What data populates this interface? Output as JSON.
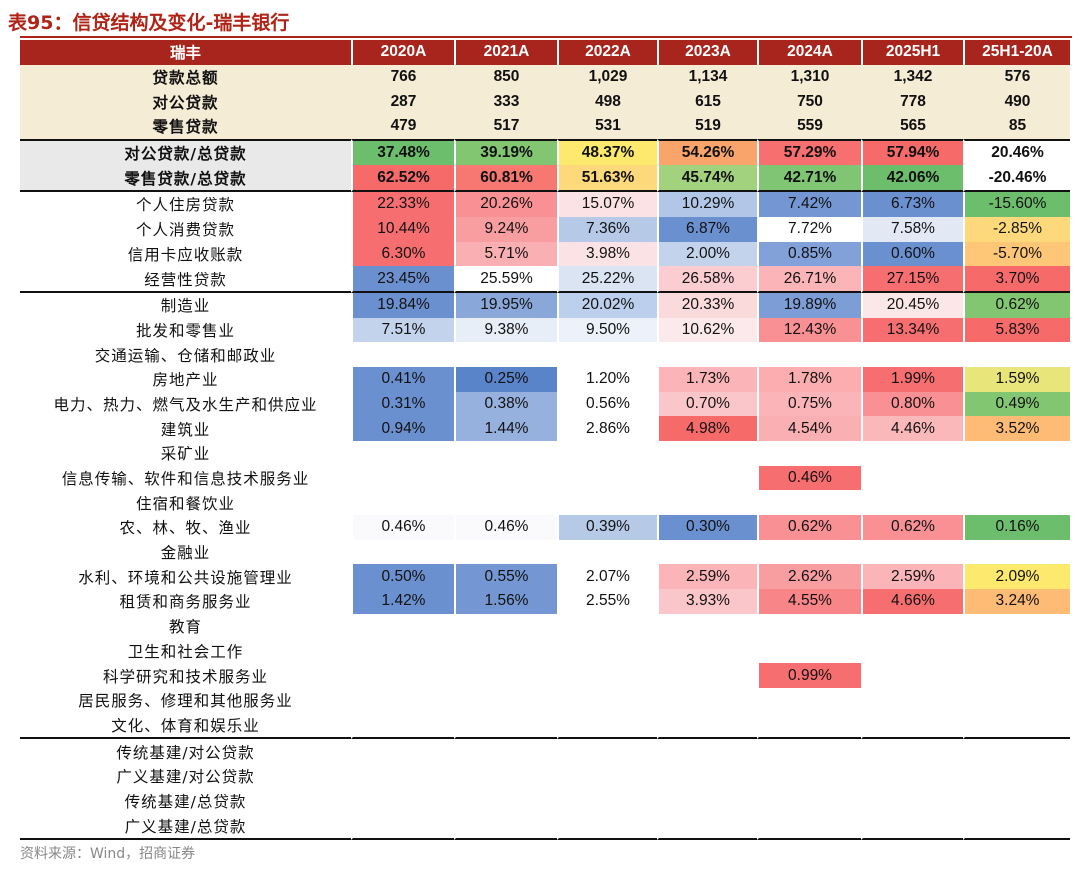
{
  "title": "表95：信贷结构及变化-瑞丰银行",
  "source": "资料来源：Wind，招商证券",
  "header": [
    "瑞丰",
    "2020A",
    "2021A",
    "2022A",
    "2023A",
    "2024A",
    "2025H1",
    "25H1-20A"
  ],
  "colors": {
    "header_bg": "#a8251d",
    "beige": "#f5ecd5",
    "grey_label": "#e9e9e9",
    "title_red": "#b02418"
  },
  "rows": [
    {
      "label": "贷款总额",
      "style": "beige",
      "values": [
        "766",
        "850",
        "1,029",
        "1,134",
        "1,310",
        "1,342",
        "576"
      ],
      "colors": [
        "",
        "",
        "",
        "",
        "",
        "",
        ""
      ]
    },
    {
      "label": "对公贷款",
      "style": "beige",
      "values": [
        "287",
        "333",
        "498",
        "615",
        "750",
        "778",
        "490"
      ],
      "colors": [
        "",
        "",
        "",
        "",
        "",
        "",
        ""
      ]
    },
    {
      "label": "零售贷款",
      "style": "beige",
      "values": [
        "479",
        "517",
        "531",
        "519",
        "559",
        "565",
        "85"
      ],
      "colors": [
        "",
        "",
        "",
        "",
        "",
        "",
        ""
      ]
    },
    {
      "label": "对公贷款/总贷款",
      "style": "grey",
      "topline": true,
      "values": [
        "37.48%",
        "39.19%",
        "48.37%",
        "54.26%",
        "57.29%",
        "57.94%",
        "20.46%"
      ],
      "colors": [
        "#6cbd6c",
        "#82c672",
        "#fde96e",
        "#f9a46b",
        "#f76f6f",
        "#f76a6a",
        ""
      ]
    },
    {
      "label": "零售贷款/总贷款",
      "style": "grey",
      "bottomline": true,
      "values": [
        "62.52%",
        "60.81%",
        "51.63%",
        "45.74%",
        "42.71%",
        "42.06%",
        "-20.46%"
      ],
      "colors": [
        "#f76a6a",
        "#f77870",
        "#fdd97c",
        "#a3d27e",
        "#7fc574",
        "#6cbd6c",
        ""
      ]
    },
    {
      "label": "个人住房贷款",
      "values": [
        "22.33%",
        "20.26%",
        "15.07%",
        "10.29%",
        "7.42%",
        "6.73%",
        "-15.60%"
      ],
      "colors": [
        "#f76e70",
        "#f99194",
        "#fbe2e4",
        "#b2c7e8",
        "#7497d3",
        "#6b90d0",
        "#6cbd6c"
      ]
    },
    {
      "label": "个人消费贷款",
      "values": [
        "10.44%",
        "9.24%",
        "7.36%",
        "6.87%",
        "7.72%",
        "7.58%",
        "-2.85%"
      ],
      "colors": [
        "#f76e70",
        "#f99ea0",
        "#b6cae8",
        "#6b90d0",
        "#ffffff",
        "#e2e9f5",
        "#fdd97c"
      ]
    },
    {
      "label": "信用卡应收账款",
      "values": [
        "6.30%",
        "5.71%",
        "3.98%",
        "2.00%",
        "0.85%",
        "0.60%",
        "-5.70%"
      ],
      "colors": [
        "#f76e70",
        "#fab0b2",
        "#fbe2e4",
        "#c3d3ec",
        "#82a1d8",
        "#6b90d0",
        "#fdc777"
      ]
    },
    {
      "label": "经营性贷款",
      "bottomline": true,
      "values": [
        "23.45%",
        "25.59%",
        "25.22%",
        "26.58%",
        "26.71%",
        "27.15%",
        "3.70%"
      ],
      "colors": [
        "#6b90d0",
        "#ffffff",
        "#dae4f3",
        "#fbcdd0",
        "#fbb5b8",
        "#f76e70",
        "#f76a6a"
      ]
    },
    {
      "label": "制造业",
      "values": [
        "19.84%",
        "19.95%",
        "20.02%",
        "20.33%",
        "19.89%",
        "20.45%",
        "0.62%"
      ],
      "colors": [
        "#6b90d0",
        "#8aa7da",
        "#bccfec",
        "#fbdadc",
        "#7d9dd6",
        "#fbe6e8",
        "#82c672"
      ]
    },
    {
      "label": "批发和零售业",
      "values": [
        "7.51%",
        "9.38%",
        "9.50%",
        "10.62%",
        "12.43%",
        "13.34%",
        "5.83%"
      ],
      "colors": [
        "#c3d3ec",
        "#e8eef8",
        "#edf1f9",
        "#fbe9eb",
        "#f99194",
        "#f76e70",
        "#f76a6a"
      ]
    },
    {
      "label": "交通运输、仓储和邮政业",
      "values": [
        "",
        "",
        "",
        "",
        "",
        "",
        ""
      ],
      "colors": [
        "",
        "",
        "",
        "",
        "",
        "",
        ""
      ]
    },
    {
      "label": "房地产业",
      "values": [
        "0.41%",
        "0.25%",
        "1.20%",
        "1.73%",
        "1.78%",
        "1.99%",
        "1.59%"
      ],
      "colors": [
        "#6b90d0",
        "#5a84c9",
        "#ffffff",
        "#fbb5b8",
        "#fbadaf",
        "#f76e70",
        "#e8e67a"
      ]
    },
    {
      "label": "电力、热力、燃气及水生产和供应业",
      "values": [
        "0.31%",
        "0.38%",
        "0.56%",
        "0.70%",
        "0.75%",
        "0.80%",
        "0.49%"
      ],
      "colors": [
        "#6b90d0",
        "#97b1de",
        "#ffffff",
        "#fbc6c9",
        "#fbb5b8",
        "#f99194",
        "#82c672"
      ]
    },
    {
      "label": "建筑业",
      "values": [
        "0.94%",
        "1.44%",
        "2.86%",
        "4.98%",
        "4.54%",
        "4.46%",
        "3.52%"
      ],
      "colors": [
        "#6b90d0",
        "#97b1de",
        "#ffffff",
        "#f76a6a",
        "#fab0b2",
        "#fbb8bb",
        "#fdbb75"
      ]
    },
    {
      "label": "采矿业",
      "values": [
        "",
        "",
        "",
        "",
        "",
        "",
        ""
      ],
      "colors": [
        "",
        "",
        "",
        "",
        "",
        "",
        ""
      ]
    },
    {
      "label": "信息传输、软件和信息技术服务业",
      "values": [
        "",
        "",
        "",
        "",
        "0.46%",
        "",
        ""
      ],
      "colors": [
        "",
        "",
        "",
        "",
        "#f76e70",
        "",
        ""
      ]
    },
    {
      "label": "住宿和餐饮业",
      "values": [
        "",
        "",
        "",
        "",
        "",
        "",
        ""
      ],
      "colors": [
        "",
        "",
        "",
        "",
        "",
        "",
        ""
      ]
    },
    {
      "label": "农、林、牧、渔业",
      "values": [
        "0.46%",
        "0.46%",
        "0.39%",
        "0.30%",
        "0.62%",
        "0.62%",
        "0.16%"
      ],
      "colors": [
        "#fafafc",
        "#fafafc",
        "#b6cae8",
        "#6b90d0",
        "#f99194",
        "#f99194",
        "#6cbd6c"
      ]
    },
    {
      "label": "金融业",
      "values": [
        "",
        "",
        "",
        "",
        "",
        "",
        ""
      ],
      "colors": [
        "",
        "",
        "",
        "",
        "",
        "",
        ""
      ]
    },
    {
      "label": "水利、环境和公共设施管理业",
      "values": [
        "0.50%",
        "0.55%",
        "2.07%",
        "2.59%",
        "2.62%",
        "2.59%",
        "2.09%"
      ],
      "colors": [
        "#6b90d0",
        "#7497d3",
        "#ffffff",
        "#fbb5b8",
        "#f99ea0",
        "#fbb5b8",
        "#fde96e"
      ]
    },
    {
      "label": "租赁和商务服务业",
      "values": [
        "1.42%",
        "1.56%",
        "2.55%",
        "3.93%",
        "4.55%",
        "4.66%",
        "3.24%"
      ],
      "colors": [
        "#6b90d0",
        "#7497d3",
        "#ffffff",
        "#fbc6c9",
        "#f88587",
        "#f76e70",
        "#fdbb75"
      ]
    },
    {
      "label": "教育",
      "values": [
        "",
        "",
        "",
        "",
        "",
        "",
        ""
      ],
      "colors": [
        "",
        "",
        "",
        "",
        "",
        "",
        ""
      ]
    },
    {
      "label": "卫生和社会工作",
      "values": [
        "",
        "",
        "",
        "",
        "",
        "",
        ""
      ],
      "colors": [
        "",
        "",
        "",
        "",
        "",
        "",
        ""
      ]
    },
    {
      "label": "科学研究和技术服务业",
      "values": [
        "",
        "",
        "",
        "",
        "0.99%",
        "",
        ""
      ],
      "colors": [
        "",
        "",
        "",
        "",
        "#f76e70",
        "",
        ""
      ]
    },
    {
      "label": "居民服务、修理和其他服务业",
      "values": [
        "",
        "",
        "",
        "",
        "",
        "",
        ""
      ],
      "colors": [
        "",
        "",
        "",
        "",
        "",
        "",
        ""
      ]
    },
    {
      "label": "文化、体育和娱乐业",
      "bottomline": true,
      "values": [
        "",
        "",
        "",
        "",
        "",
        "",
        ""
      ],
      "colors": [
        "",
        "",
        "",
        "",
        "",
        "",
        ""
      ]
    },
    {
      "label": "传统基建/对公贷款",
      "values": [
        "",
        "",
        "",
        "",
        "",
        "",
        ""
      ],
      "colors": [
        "",
        "",
        "",
        "",
        "",
        "",
        ""
      ]
    },
    {
      "label": "广义基建/对公贷款",
      "values": [
        "",
        "",
        "",
        "",
        "",
        "",
        ""
      ],
      "colors": [
        "",
        "",
        "",
        "",
        "",
        "",
        ""
      ]
    },
    {
      "label": "传统基建/总贷款",
      "values": [
        "",
        "",
        "",
        "",
        "",
        "",
        ""
      ],
      "colors": [
        "",
        "",
        "",
        "",
        "",
        "",
        ""
      ]
    },
    {
      "label": "广义基建/总贷款",
      "bottomline": true,
      "values": [
        "",
        "",
        "",
        "",
        "",
        "",
        ""
      ],
      "colors": [
        "",
        "",
        "",
        "",
        "",
        "",
        ""
      ]
    }
  ]
}
